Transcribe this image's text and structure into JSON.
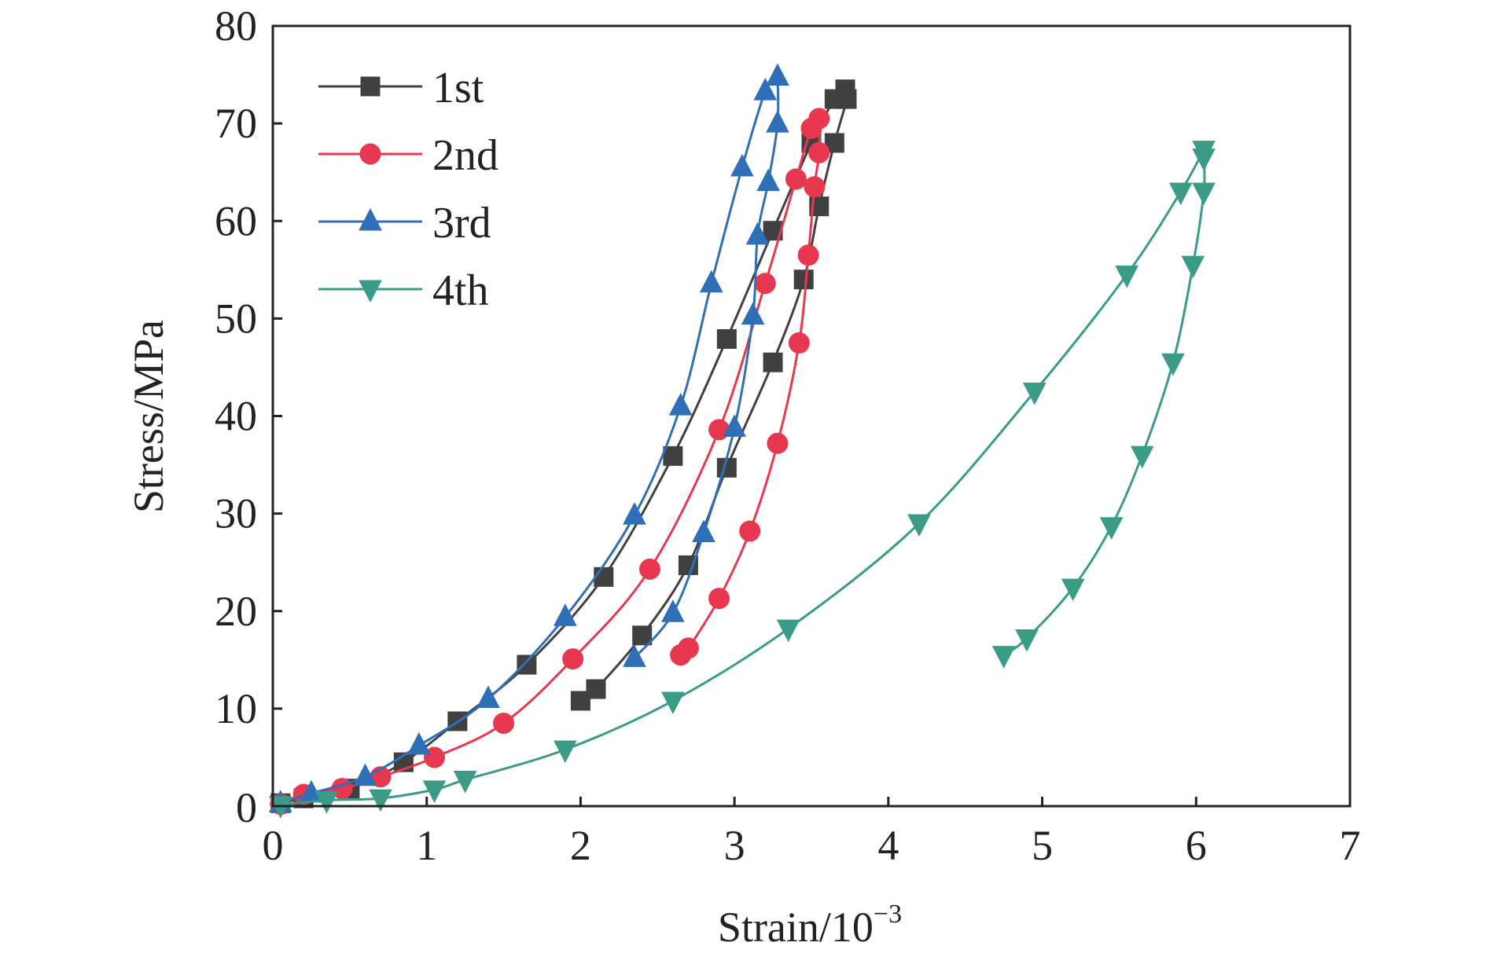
{
  "chart_data": {
    "type": "line",
    "title": "",
    "xlabel": "Strain/10",
    "xlabel_exponent": "−3",
    "ylabel": "Stress/MPa",
    "xlim": [
      0,
      7
    ],
    "ylim": [
      0,
      80
    ],
    "xticks": [
      0,
      1,
      2,
      3,
      4,
      5,
      6,
      7
    ],
    "yticks": [
      10,
      20,
      30,
      40,
      50,
      60,
      70,
      80
    ],
    "y_zero_label": "0",
    "grid": false,
    "legend_position": "top-left",
    "series": [
      {
        "name": "1st",
        "color": "#404040",
        "marker": "square",
        "loading": [
          [
            0.05,
            0.3
          ],
          [
            0.2,
            0.8
          ],
          [
            0.5,
            1.8
          ],
          [
            0.85,
            4.5
          ],
          [
            1.2,
            8.7
          ],
          [
            1.65,
            14.5
          ],
          [
            2.15,
            23.5
          ],
          [
            2.6,
            35.9
          ],
          [
            2.95,
            47.9
          ],
          [
            3.25,
            59.0
          ],
          [
            3.5,
            68.0
          ],
          [
            3.65,
            72.5
          ],
          [
            3.72,
            73.5
          ]
        ],
        "unloading": [
          [
            3.72,
            73.5
          ],
          [
            3.73,
            72.5
          ],
          [
            3.65,
            68.0
          ],
          [
            3.55,
            61.5
          ],
          [
            3.45,
            54.0
          ],
          [
            3.25,
            45.5
          ],
          [
            2.95,
            34.7
          ],
          [
            2.7,
            24.7
          ],
          [
            2.4,
            17.5
          ],
          [
            2.1,
            12.0
          ],
          [
            2.0,
            10.8
          ]
        ]
      },
      {
        "name": "2nd",
        "color": "#e8384f",
        "marker": "circle",
        "loading": [
          [
            0.05,
            0.2
          ],
          [
            0.2,
            1.2
          ],
          [
            0.45,
            1.8
          ],
          [
            0.7,
            3.0
          ],
          [
            1.05,
            5.0
          ],
          [
            1.5,
            8.5
          ],
          [
            1.95,
            15.1
          ],
          [
            2.45,
            24.3
          ],
          [
            2.9,
            38.6
          ],
          [
            3.2,
            53.6
          ],
          [
            3.4,
            64.3
          ],
          [
            3.5,
            69.5
          ],
          [
            3.55,
            70.5
          ]
        ],
        "unloading": [
          [
            3.55,
            70.5
          ],
          [
            3.55,
            67.0
          ],
          [
            3.52,
            63.5
          ],
          [
            3.48,
            56.5
          ],
          [
            3.42,
            47.5
          ],
          [
            3.28,
            37.2
          ],
          [
            3.1,
            28.2
          ],
          [
            2.9,
            21.3
          ],
          [
            2.7,
            16.2
          ],
          [
            2.65,
            15.5
          ]
        ]
      },
      {
        "name": "3rd",
        "color": "#2f6fb7",
        "marker": "triangle-up",
        "loading": [
          [
            0.05,
            0.3
          ],
          [
            0.25,
            1.3
          ],
          [
            0.6,
            3.0
          ],
          [
            0.95,
            6.2
          ],
          [
            1.4,
            11.0
          ],
          [
            1.9,
            19.4
          ],
          [
            2.35,
            29.8
          ],
          [
            2.65,
            41.0
          ],
          [
            2.85,
            53.6
          ],
          [
            3.05,
            65.5
          ],
          [
            3.2,
            73.3
          ],
          [
            3.28,
            74.8
          ]
        ],
        "unloading": [
          [
            3.28,
            74.8
          ],
          [
            3.28,
            70.0
          ],
          [
            3.22,
            64.0
          ],
          [
            3.15,
            58.5
          ],
          [
            3.12,
            50.3
          ],
          [
            3.0,
            38.8
          ],
          [
            2.8,
            28.0
          ],
          [
            2.6,
            19.8
          ],
          [
            2.35,
            15.2
          ]
        ]
      },
      {
        "name": "4th",
        "color": "#3a9c86",
        "marker": "triangle-down",
        "loading": [
          [
            0.05,
            0.1
          ],
          [
            0.35,
            0.6
          ],
          [
            0.7,
            0.8
          ],
          [
            1.05,
            1.7
          ],
          [
            1.25,
            2.7
          ],
          [
            1.9,
            5.8
          ],
          [
            2.6,
            10.8
          ],
          [
            3.35,
            18.2
          ],
          [
            4.2,
            29.0
          ],
          [
            4.95,
            42.5
          ],
          [
            5.55,
            54.5
          ],
          [
            5.9,
            63.0
          ],
          [
            6.05,
            67.3
          ]
        ],
        "unloading": [
          [
            6.05,
            67.3
          ],
          [
            6.05,
            66.5
          ],
          [
            6.05,
            63.0
          ],
          [
            5.98,
            55.5
          ],
          [
            5.85,
            45.5
          ],
          [
            5.65,
            36.0
          ],
          [
            5.45,
            28.7
          ],
          [
            5.2,
            22.4
          ],
          [
            4.9,
            17.2
          ],
          [
            4.75,
            15.5
          ]
        ]
      }
    ]
  }
}
